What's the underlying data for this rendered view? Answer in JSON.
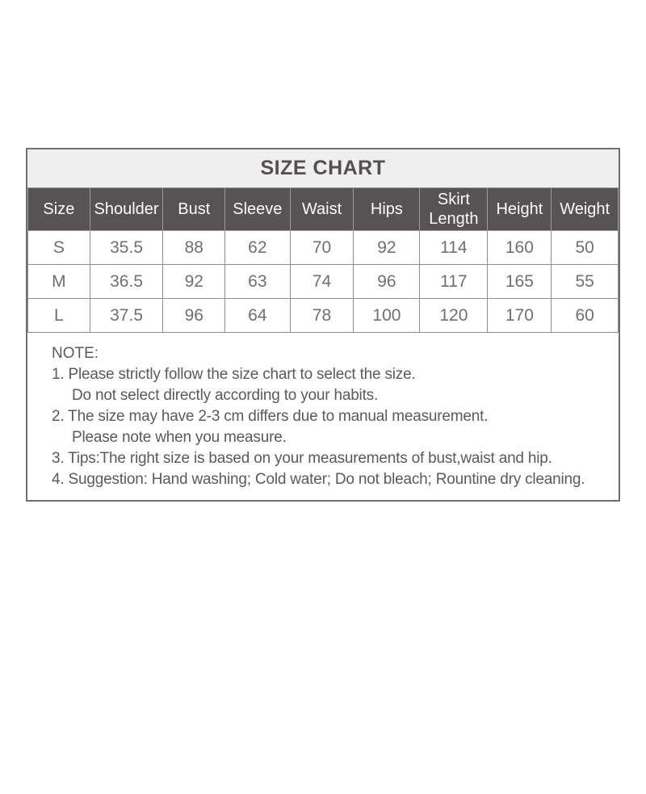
{
  "title": "SIZE CHART",
  "table": {
    "headers": [
      "Size",
      "Shoulder",
      "Bust",
      "Sleeve",
      "Waist",
      "Hips",
      "Skirt Length",
      "Height",
      "Weight"
    ],
    "rows": [
      [
        "S",
        "35.5",
        "88",
        "62",
        "70",
        "92",
        "114",
        "160",
        "50"
      ],
      [
        "M",
        "36.5",
        "92",
        "63",
        "74",
        "96",
        "117",
        "165",
        "55"
      ],
      [
        "L",
        "37.5",
        "96",
        "64",
        "78",
        "100",
        "120",
        "170",
        "60"
      ]
    ]
  },
  "note": {
    "heading": "NOTE:",
    "lines": [
      {
        "text": "1. Please strictly follow the size chart to select the size.",
        "indent": false
      },
      {
        "text": "Do not select directly according to your habits.",
        "indent": true
      },
      {
        "text": "2. The size may have 2-3 cm differs due to manual measurement.",
        "indent": false
      },
      {
        "text": "Please note when you measure.",
        "indent": true
      },
      {
        "text": "3. Tips:The right size is based on your measurements of bust,waist and hip.",
        "indent": false
      },
      {
        "text": "4. Suggestion: Hand washing; Cold water; Do not bleach; Rountine dry cleaning.",
        "indent": false
      }
    ]
  },
  "colors": {
    "header_bg": "#575253",
    "header_text": "#fbfafa",
    "title_bg": "#f0efef",
    "title_text": "#555050",
    "body_text": "#716f75",
    "note_text": "#5b595e",
    "border": "#8f8f8f",
    "header_border": "#9c9998",
    "outer_border": "#6f6d6d",
    "page_bg": "#ffffff"
  }
}
